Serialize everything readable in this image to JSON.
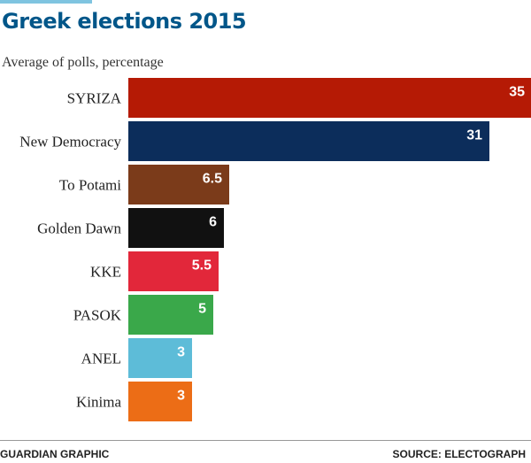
{
  "chart_data": {
    "type": "bar",
    "orientation": "horizontal",
    "title": "Greek elections 2015",
    "subtitle": "Average of polls, percentage",
    "categories": [
      "SYRIZA",
      "New Democracy",
      "To Potami",
      "Golden Dawn",
      "KKE",
      "PASOK",
      "ANEL",
      "Kinima"
    ],
    "values": [
      35,
      31,
      6.5,
      6,
      5.5,
      5,
      3,
      3
    ],
    "value_labels": [
      "35",
      "31",
      "6.5",
      "6",
      "5.5",
      "5",
      "3",
      "3"
    ],
    "colors": [
      "#b51a05",
      "#0c2d5b",
      "#7b3b1a",
      "#111111",
      "#e2273a",
      "#3aa84a",
      "#5dbcd8",
      "#ec6d16"
    ],
    "xlabel": "",
    "ylabel": "",
    "grid": false
  },
  "footer": {
    "credit": "GUARDIAN GRAPHIC",
    "source": "SOURCE: ELECTOGRAPH"
  }
}
